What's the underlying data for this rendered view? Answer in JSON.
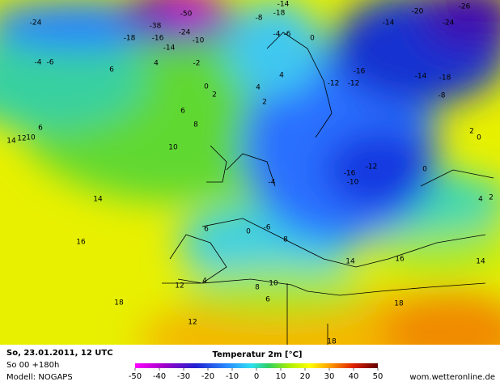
{
  "panel": {
    "date": "So, 23.01.2011, 12 UTC",
    "run": "So 00 +180h",
    "model": "Modell: NOGAPS",
    "source": "wom.wetteronline.de"
  },
  "colorbar": {
    "title": "Temperatur 2m [°C]",
    "lim": [
      -50,
      50
    ],
    "ticks": [
      -50,
      -40,
      -30,
      -20,
      -10,
      0,
      10,
      20,
      30,
      40,
      50
    ]
  },
  "map_labels": [
    "-24",
    "-50",
    "-38",
    "-24",
    "-18",
    "-16",
    "-10",
    "-14",
    "-4",
    "-6",
    "6",
    "4",
    "-2",
    "0",
    "2",
    "6",
    "8",
    "10",
    "14",
    "12",
    "10",
    "6",
    "14",
    "16",
    "18",
    "6",
    "4",
    "12",
    "12",
    "0",
    "-6",
    "8",
    "6",
    "10",
    "8",
    "18",
    "18",
    "14",
    "16",
    "14",
    "-4",
    "-10",
    "-16",
    "-12",
    "0",
    "2",
    "4",
    "4",
    "-12",
    "-12",
    "-16",
    "-14",
    "-18",
    "-8",
    "-14",
    "-20",
    "-24",
    "-26",
    "-8",
    "-18",
    "-14",
    "-4",
    "-6",
    "0",
    "2",
    "0",
    "4",
    "2"
  ]
}
